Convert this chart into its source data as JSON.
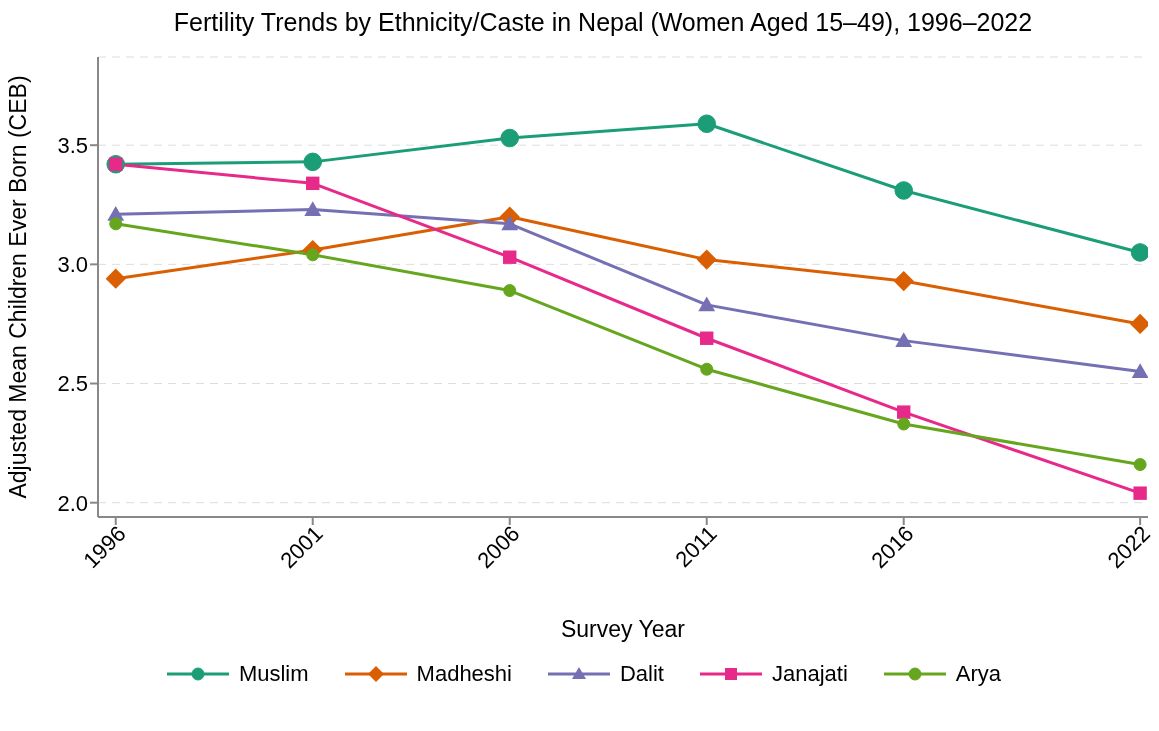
{
  "chart_data": {
    "type": "line",
    "title": "Fertility Trends by Ethnicity/Caste in Nepal (Women Aged 15–49), 1996–2022",
    "xlabel": "Survey Year",
    "ylabel": "Adjusted Mean Children Ever Born (CEB)",
    "x": [
      1996,
      2001,
      2006,
      2011,
      2016,
      2022
    ],
    "xlim": [
      1995.55,
      2022.2
    ],
    "xticks": [
      1996,
      2001,
      2006,
      2011,
      2016,
      2022
    ],
    "ylim": [
      1.94,
      3.87
    ],
    "yticks": [
      {
        "value": 2,
        "label": "2.0"
      },
      {
        "value": 2.5,
        "label": "2.5"
      },
      {
        "value": 3,
        "label": "3.0"
      },
      {
        "value": 3.5,
        "label": "3.5"
      }
    ],
    "grid": "y",
    "legend": "bottom",
    "line_style": "solid",
    "series": [
      {
        "name": "Muslim",
        "color": "#1b9e77",
        "marker": "circle",
        "values": [
          3.42,
          3.43,
          3.53,
          3.59,
          3.31,
          3.05
        ]
      },
      {
        "name": "Madheshi",
        "color": "#d95f02",
        "marker": "diamond",
        "values": [
          2.94,
          3.06,
          3.2,
          3.02,
          2.93,
          2.75
        ]
      },
      {
        "name": "Dalit",
        "color": "#7570b3",
        "marker": "triangle",
        "values": [
          3.21,
          3.23,
          3.17,
          2.83,
          2.68,
          2.55
        ]
      },
      {
        "name": "Janajati",
        "color": "#e7298a",
        "marker": "square",
        "values": [
          3.42,
          3.34,
          3.03,
          2.69,
          2.38,
          2.04
        ]
      },
      {
        "name": "Arya",
        "color": "#66a61e",
        "marker": "circle",
        "values": [
          3.17,
          3.04,
          2.89,
          2.56,
          2.33,
          2.16
        ]
      }
    ]
  }
}
